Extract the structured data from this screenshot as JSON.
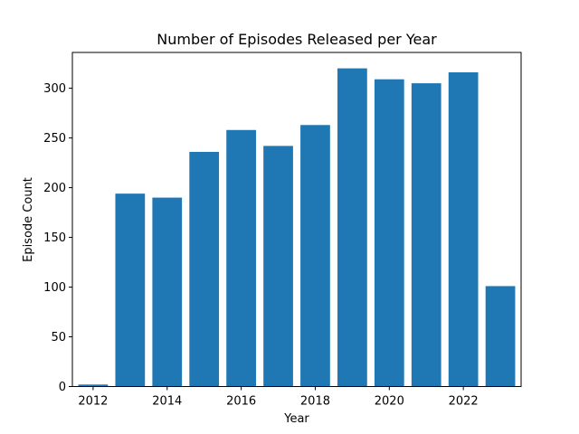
{
  "chart_data": {
    "type": "bar",
    "title": "Number of Episodes Released per Year",
    "xlabel": "Year",
    "ylabel": "Episode Count",
    "x": [
      2012,
      2013,
      2014,
      2015,
      2016,
      2017,
      2018,
      2019,
      2020,
      2021,
      2022,
      2023
    ],
    "values": [
      2,
      194,
      190,
      236,
      258,
      242,
      263,
      320,
      309,
      305,
      316,
      101
    ],
    "xticks": [
      2012,
      2014,
      2016,
      2018,
      2020,
      2022
    ],
    "xtick_labels": [
      "2012",
      "2014",
      "2016",
      "2018",
      "2020",
      "2022"
    ],
    "yticks": [
      0,
      50,
      100,
      150,
      200,
      250,
      300
    ],
    "ytick_labels": [
      "0",
      "50",
      "100",
      "150",
      "200",
      "250",
      "300"
    ],
    "xlim": [
      2011.44,
      2023.56
    ],
    "ylim": [
      0,
      336
    ],
    "bar_color": "#1f77b4",
    "grid": false
  }
}
